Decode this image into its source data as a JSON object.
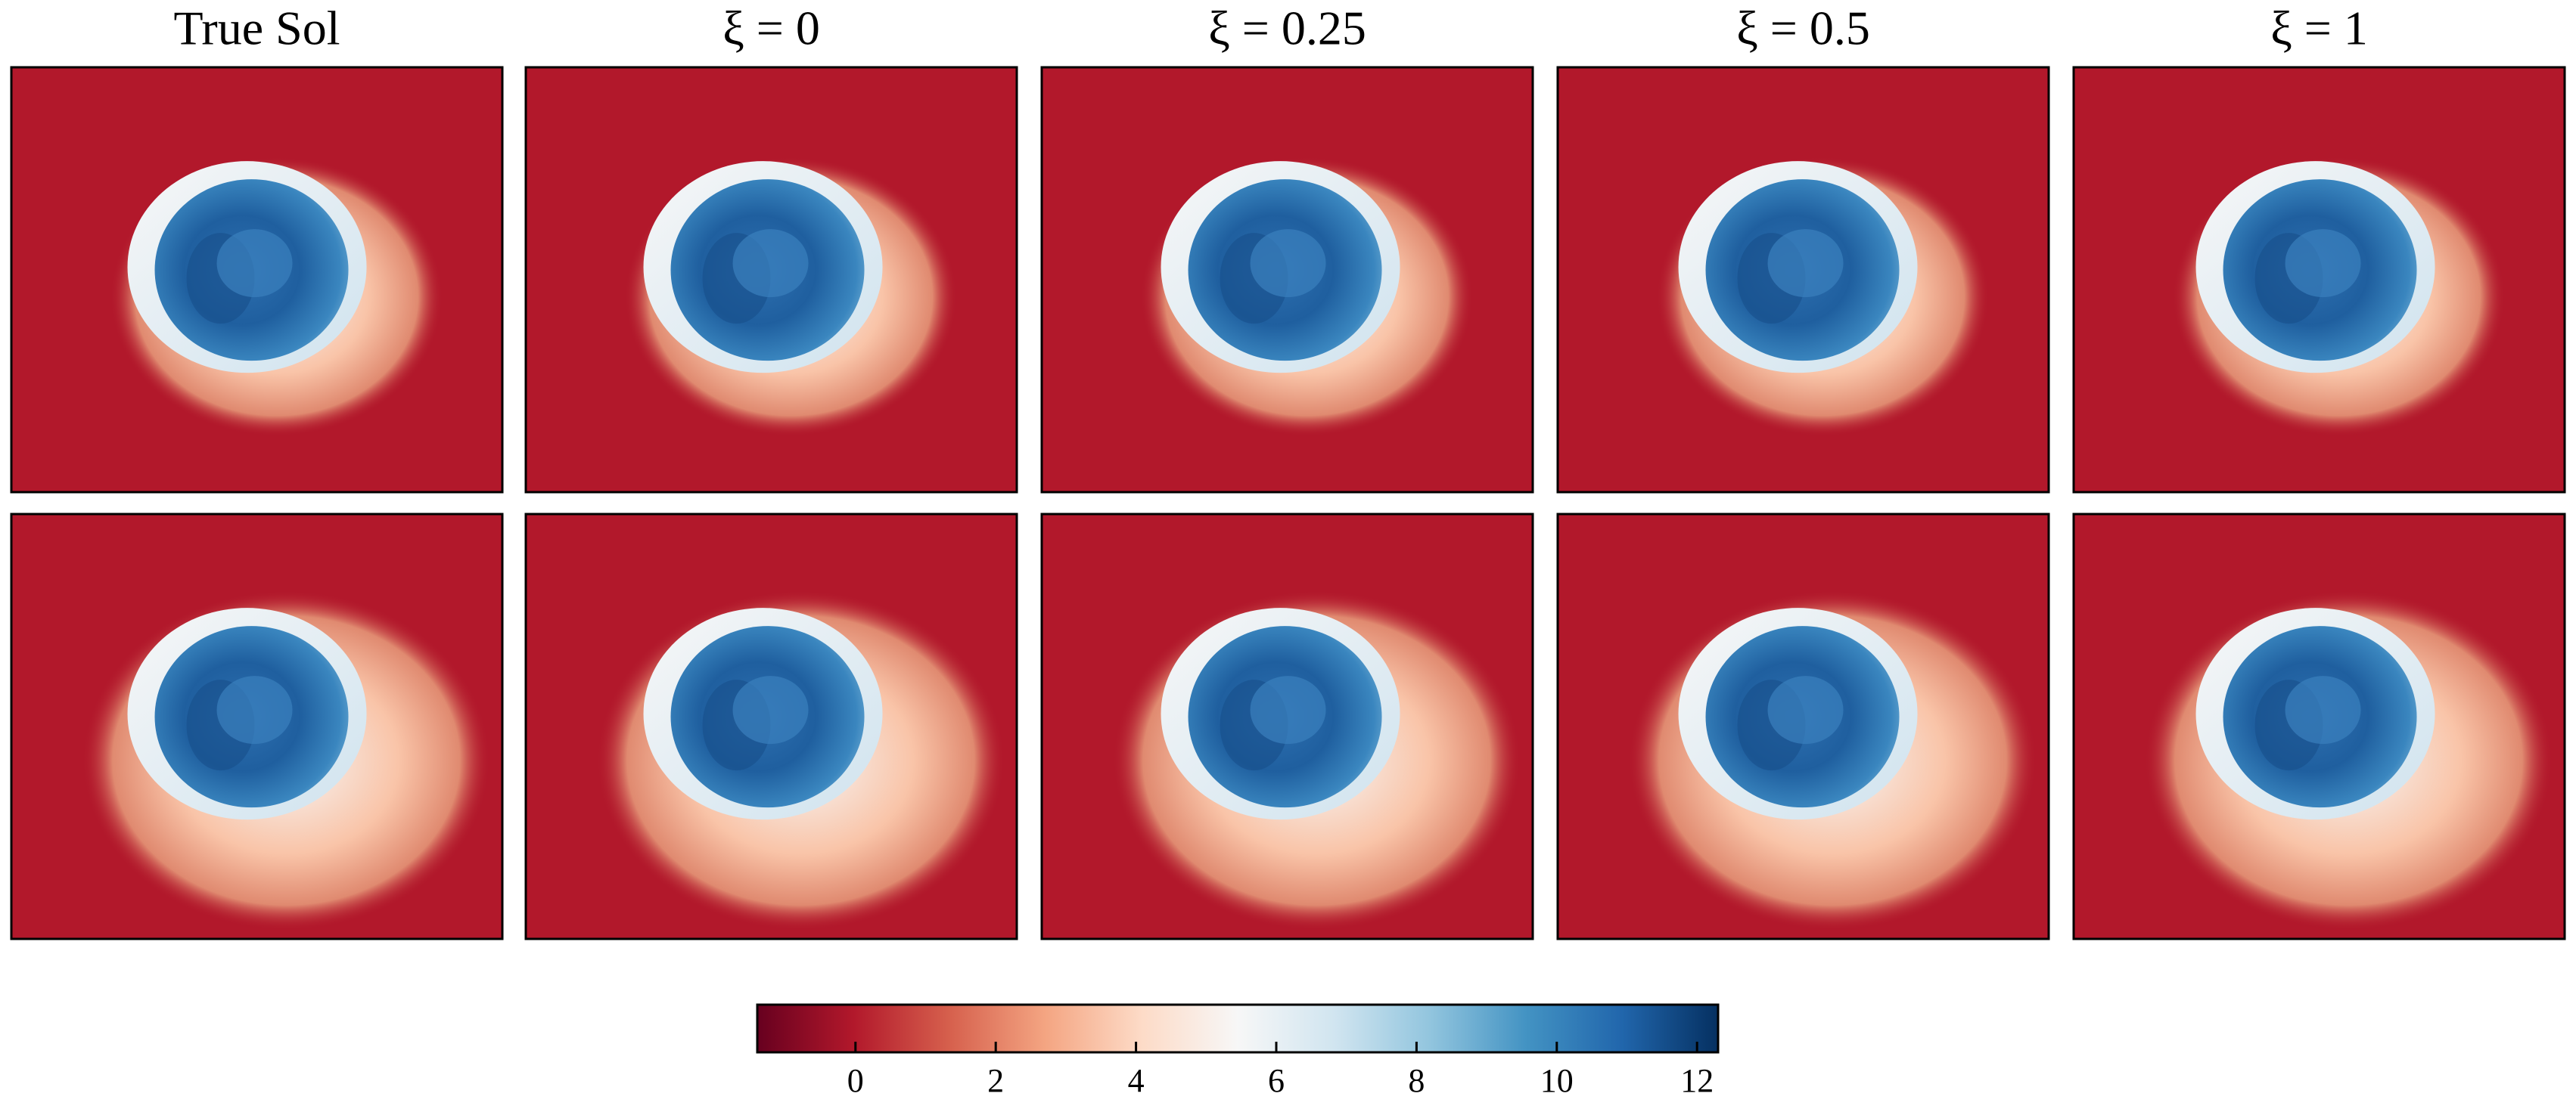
{
  "chart_data": {
    "type": "heatmap-grid",
    "column_titles": [
      "True Sol",
      "ξ = 0",
      "ξ = 0.25",
      "ξ = 0.5",
      "ξ = 1"
    ],
    "rows": 2,
    "colorbar": {
      "colormap": "RdBu",
      "lim": [
        -1.4,
        12.3
      ],
      "ticks": [
        0,
        2,
        4,
        6,
        8,
        10,
        12
      ],
      "colors": [
        "#67001f",
        "#b2182b",
        "#d6604d",
        "#f4a582",
        "#fddbc7",
        "#f7f7f7",
        "#d1e5f0",
        "#92c5de",
        "#4393c3",
        "#2166ac",
        "#053061"
      ]
    }
  }
}
